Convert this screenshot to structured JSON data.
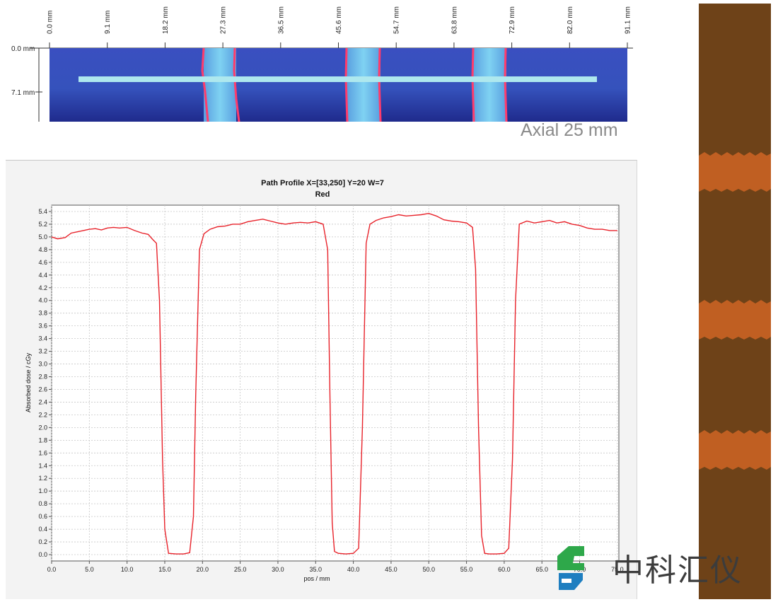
{
  "image_panel": {
    "ruler_labels": [
      "0.0 mm",
      "9.1 mm",
      "18.2 mm",
      "27.3 mm",
      "36.5 mm",
      "45.6 mm",
      "54.7 mm",
      "63.8 mm",
      "72.9 mm",
      "82.0 mm",
      "91.1 mm"
    ],
    "y_labels": [
      "0.0 mm",
      "7.1 mm"
    ],
    "caption": "Axial 25 mm"
  },
  "chart_data": {
    "type": "line",
    "title": "Path Profile X=[33,250] Y=20 W=7",
    "subtitle": "Red",
    "xlabel": "pos / mm",
    "ylabel": "Absorbed dose / cGy",
    "xlim": [
      0,
      75.2
    ],
    "ylim": [
      -0.1,
      5.5
    ],
    "x_ticks": [
      "0.0",
      "5.0",
      "10.0",
      "15.0",
      "20.0",
      "25.0",
      "30.0",
      "35.0",
      "40.0",
      "45.0",
      "50.0",
      "55.0",
      "60.0",
      "65.0",
      "70.0",
      "75.0"
    ],
    "y_ticks": [
      "0.0",
      "0.2",
      "0.4",
      "0.6",
      "0.8",
      "1.0",
      "1.2",
      "1.4",
      "1.6",
      "1.8",
      "2.0",
      "2.2",
      "2.4",
      "2.6",
      "2.8",
      "3.0",
      "3.2",
      "3.4",
      "3.6",
      "3.8",
      "4.0",
      "4.2",
      "4.4",
      "4.6",
      "4.8",
      "5.0",
      "5.2",
      "5.4"
    ],
    "grid": true,
    "line_color": "#e8222a",
    "series": [
      {
        "x": [
          0.0,
          0.8,
          1.8,
          2.6,
          3.4,
          4.2,
          5.0,
          5.8,
          6.6,
          7.4,
          8.2,
          9.0,
          10.0,
          11.0,
          12.0,
          12.8,
          13.4,
          13.9,
          14.3,
          14.7,
          15.0,
          15.5,
          16.5,
          17.5,
          18.3,
          18.8,
          19.1,
          19.6,
          20.2,
          21.0,
          22.0,
          23.0,
          24.0,
          25.0,
          26.0,
          27.0,
          28.0,
          29.0,
          30.0,
          31.0,
          32.0,
          33.0,
          34.0,
          35.0,
          36.0,
          36.6,
          36.9,
          37.2,
          37.5,
          38.0,
          39.0,
          40.0,
          40.7,
          41.2,
          41.7,
          42.2,
          43.0,
          44.0,
          45.0,
          46.0,
          47.0,
          48.0,
          49.0,
          50.0,
          51.0,
          52.0,
          53.0,
          54.0,
          55.0,
          55.8,
          56.2,
          56.6,
          57.0,
          57.4,
          58.0,
          59.0,
          60.0,
          60.6,
          61.1,
          61.5,
          62.0,
          63.0,
          64.0,
          65.0,
          66.0,
          67.0,
          68.0,
          69.0,
          70.0,
          71.0,
          72.0,
          73.0,
          74.0,
          75.0
        ],
        "y": [
          5.0,
          4.97,
          4.99,
          5.06,
          5.08,
          5.1,
          5.12,
          5.13,
          5.11,
          5.14,
          5.15,
          5.14,
          5.15,
          5.1,
          5.06,
          5.04,
          4.96,
          4.9,
          4.0,
          1.5,
          0.4,
          0.02,
          0.01,
          0.01,
          0.03,
          0.6,
          2.5,
          4.8,
          5.05,
          5.12,
          5.16,
          5.17,
          5.2,
          5.2,
          5.24,
          5.26,
          5.28,
          5.25,
          5.22,
          5.2,
          5.22,
          5.23,
          5.22,
          5.24,
          5.2,
          4.8,
          2.5,
          0.5,
          0.05,
          0.02,
          0.01,
          0.02,
          0.1,
          2.0,
          4.9,
          5.2,
          5.26,
          5.3,
          5.32,
          5.35,
          5.33,
          5.34,
          5.35,
          5.37,
          5.33,
          5.27,
          5.25,
          5.24,
          5.22,
          5.15,
          4.5,
          2.0,
          0.3,
          0.02,
          0.01,
          0.01,
          0.02,
          0.1,
          1.5,
          4.0,
          5.2,
          5.25,
          5.22,
          5.24,
          5.26,
          5.22,
          5.24,
          5.2,
          5.18,
          5.14,
          5.12,
          5.12,
          5.1,
          5.1
        ]
      }
    ]
  },
  "brand": {
    "name": "中科汇仪",
    "colors": {
      "logo_green": "#2ea84a",
      "logo_blue": "#1e7ec0"
    }
  }
}
